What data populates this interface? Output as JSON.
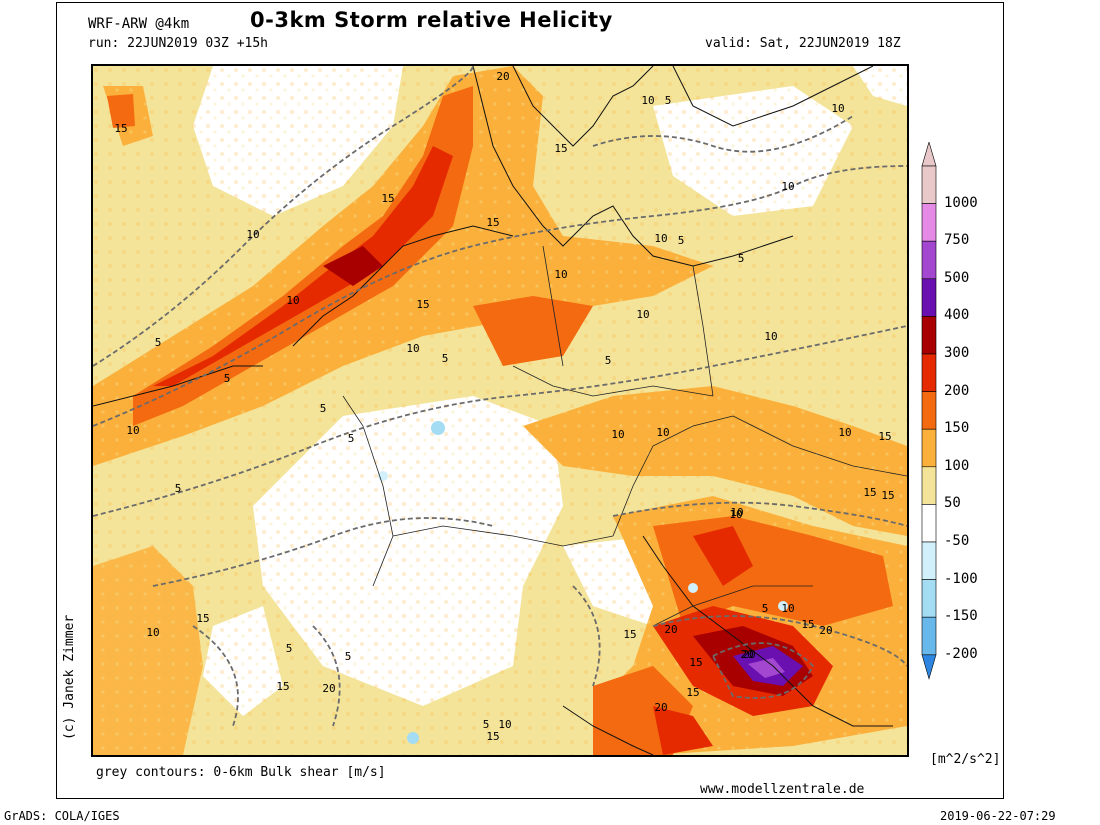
{
  "header": {
    "model": "WRF-ARW @4km",
    "title": "0-3km Storm relative Helicity",
    "run": "run: 22JUN2019 03Z +15h",
    "valid": "valid: Sat, 22JUN2019 18Z"
  },
  "footer": {
    "credit": "(c) Janek Zimmer",
    "contours_note": "grey contours: 0-6km Bulk shear [m/s]",
    "website": "www.modellzentrale.de",
    "grads": "GrADS: COLA/IGES",
    "timestamp": "2019-06-22-07:29"
  },
  "colorbar": {
    "units": "[m^2/s^2]",
    "levels": [
      {
        "label": "1000",
        "color": "#e8c8c8"
      },
      {
        "label": "750",
        "color": "#e58be5"
      },
      {
        "label": "500",
        "color": "#a347d1"
      },
      {
        "label": "400",
        "color": "#6a0fb0"
      },
      {
        "label": "300",
        "color": "#a80000"
      },
      {
        "label": "200",
        "color": "#e62a00"
      },
      {
        "label": "150",
        "color": "#f46a10"
      },
      {
        "label": "100",
        "color": "#fbb03b"
      },
      {
        "label": "50",
        "color": "#f4e49a"
      },
      {
        "label": "-50",
        "color": "#ffffff"
      },
      {
        "label": "-100",
        "color": "#d2f0fb"
      },
      {
        "label": "-150",
        "color": "#a4dcf3"
      },
      {
        "label": "-200",
        "color": "#68b8ec"
      }
    ],
    "bottom_color": "#2e86e0"
  },
  "contour_labels": [
    "20",
    "10",
    "10",
    "5",
    "15",
    "15",
    "15",
    "10",
    "10",
    "5",
    "5",
    "15",
    "10",
    "5",
    "5",
    "10",
    "10",
    "5",
    "10",
    "5",
    "15",
    "10",
    "10",
    "10",
    "10",
    "5",
    "5",
    "15",
    "10",
    "5",
    "10",
    "15",
    "15",
    "10",
    "5",
    "15",
    "5",
    "20",
    "20",
    "15",
    "20",
    "20",
    "5",
    "10",
    "15",
    "15",
    "10",
    "20",
    "15",
    "15",
    "20",
    "10",
    "5",
    "10",
    "15"
  ]
}
